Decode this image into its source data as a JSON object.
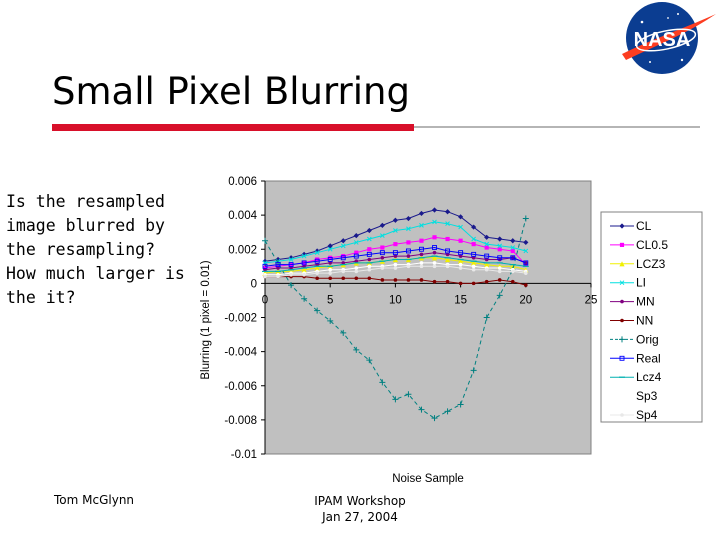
{
  "slide": {
    "title": "Small Pixel Blurring",
    "body": "Is the resampled image blurred by the resampling? How much larger is the it?",
    "footer_left": "Tom McGlynn",
    "footer_center_line1": "IPAM Workshop",
    "footer_center_line2": "Jan 27, 2004",
    "logo_text": "NASA"
  },
  "colors": {
    "title_rule": "#d8102a",
    "plot_area": "#c0c0c0",
    "logo_blue": "#0b3d91",
    "logo_red": "#fc3d21"
  },
  "chart_data": {
    "type": "line",
    "title": "",
    "xlabel": "Noise Sample",
    "ylabel": "Blurring (1 pixel = 0.01)",
    "xlim": [
      0,
      25
    ],
    "ylim": [
      -0.01,
      0.006
    ],
    "xticks": [
      "0",
      "5",
      "10",
      "15",
      "20",
      "25"
    ],
    "yticks": [
      "0.006",
      "0.004",
      "0.002",
      "0",
      "-0.002",
      "-0.004",
      "-0.006",
      "-0.008",
      "-0.01"
    ],
    "grid": false,
    "legend_position": "right",
    "x": [
      0,
      1,
      2,
      3,
      4,
      5,
      6,
      7,
      8,
      9,
      10,
      11,
      12,
      13,
      14,
      15,
      16,
      17,
      18,
      19,
      20
    ],
    "series": [
      {
        "name": "CL",
        "color": "#1a1a8c",
        "marker": "diamond",
        "dash": "",
        "values": [
          0.0013,
          0.0014,
          0.0015,
          0.0017,
          0.0019,
          0.0022,
          0.0025,
          0.0028,
          0.0031,
          0.0034,
          0.0037,
          0.0038,
          0.0041,
          0.0043,
          0.0042,
          0.0039,
          0.0033,
          0.0027,
          0.0026,
          0.0025,
          0.0024
        ]
      },
      {
        "name": "CL0.5",
        "color": "#ff00ff",
        "marker": "square",
        "dash": "",
        "values": [
          0.0009,
          0.001,
          0.0011,
          0.0012,
          0.0014,
          0.0015,
          0.0016,
          0.0018,
          0.002,
          0.0021,
          0.0023,
          0.0024,
          0.0025,
          0.0027,
          0.0026,
          0.0025,
          0.0023,
          0.0021,
          0.002,
          0.0019,
          0.0011
        ]
      },
      {
        "name": "LCZ3",
        "color": "#f0f000",
        "marker": "triangle",
        "dash": "",
        "values": [
          0.0006,
          0.0007,
          0.0007,
          0.0008,
          0.0009,
          0.001,
          0.0011,
          0.0012,
          0.0012,
          0.0013,
          0.0014,
          0.0014,
          0.0015,
          0.0015,
          0.0014,
          0.0013,
          0.0012,
          0.0011,
          0.001,
          0.001,
          0.0008
        ]
      },
      {
        "name": "LI",
        "color": "#00e0e0",
        "marker": "x",
        "dash": "",
        "values": [
          0.0012,
          0.0013,
          0.0014,
          0.0016,
          0.0018,
          0.002,
          0.0022,
          0.0024,
          0.0026,
          0.0028,
          0.0031,
          0.0032,
          0.0034,
          0.0036,
          0.0035,
          0.0033,
          0.0026,
          0.0023,
          0.0022,
          0.0021,
          0.0019
        ]
      },
      {
        "name": "MN",
        "color": "#800080",
        "marker": "circle",
        "dash": "",
        "values": [
          0.0008,
          0.0009,
          0.0009,
          0.001,
          0.0011,
          0.0012,
          0.0012,
          0.0013,
          0.0014,
          0.0015,
          0.0016,
          0.0016,
          0.0017,
          0.0018,
          0.0017,
          0.0016,
          0.0015,
          0.0014,
          0.0014,
          0.0015,
          0.0012
        ]
      },
      {
        "name": "NN",
        "color": "#800000",
        "marker": "circle",
        "dash": "",
        "values": [
          0.0004,
          0.0004,
          0.0004,
          0.0004,
          0.0003,
          0.0003,
          0.0003,
          0.0003,
          0.0003,
          0.0002,
          0.0002,
          0.0002,
          0.0002,
          0.0001,
          0.0001,
          0.0,
          0.0,
          0.0001,
          0.0002,
          0.0001,
          -0.0001
        ]
      },
      {
        "name": "Orig",
        "color": "#008080",
        "marker": "plus",
        "dash": "4,3",
        "values": [
          0.0025,
          0.0012,
          -0.0001,
          -0.0009,
          -0.0016,
          -0.0022,
          -0.0029,
          -0.0039,
          -0.0045,
          -0.0058,
          -0.0068,
          -0.0065,
          -0.0074,
          -0.0079,
          -0.0075,
          -0.0071,
          -0.0051,
          -0.002,
          -0.0007,
          0.0008,
          0.0038
        ]
      },
      {
        "name": "Real",
        "color": "#0000ff",
        "marker": "square-open",
        "dash": "",
        "values": [
          0.001,
          0.0011,
          0.0011,
          0.0012,
          0.0013,
          0.0014,
          0.0015,
          0.0016,
          0.0017,
          0.0018,
          0.0018,
          0.0019,
          0.002,
          0.0021,
          0.0019,
          0.0018,
          0.0017,
          0.0016,
          0.0015,
          0.0015,
          0.0012
        ]
      },
      {
        "name": "Lcz4",
        "color": "#00b0b0",
        "marker": "dash",
        "dash": "",
        "values": [
          0.0007,
          0.0007,
          0.0008,
          0.0009,
          0.001,
          0.001,
          0.0011,
          0.0012,
          0.0012,
          0.0013,
          0.0014,
          0.0014,
          0.0015,
          0.0016,
          0.0015,
          0.0014,
          0.0013,
          0.0012,
          0.0012,
          0.0011,
          0.001
        ]
      },
      {
        "name": "Sp3",
        "color": "#ffffff",
        "marker": "circle",
        "dash": "",
        "values": [
          0.0005,
          0.0005,
          0.0006,
          0.0006,
          0.0007,
          0.0008,
          0.0008,
          0.0009,
          0.001,
          0.001,
          0.0011,
          0.0011,
          0.0012,
          0.0012,
          0.0011,
          0.0011,
          0.001,
          0.0009,
          0.0009,
          0.0008,
          0.0007
        ]
      },
      {
        "name": "Sp4",
        "color": "#e8e8e8",
        "marker": "circle",
        "dash": "",
        "values": [
          0.0004,
          0.0004,
          0.0005,
          0.0005,
          0.0006,
          0.0006,
          0.0007,
          0.0007,
          0.0008,
          0.0009,
          0.0009,
          0.001,
          0.001,
          0.001,
          0.001,
          0.0009,
          0.0008,
          0.0008,
          0.0007,
          0.0007,
          0.0006
        ]
      }
    ]
  }
}
